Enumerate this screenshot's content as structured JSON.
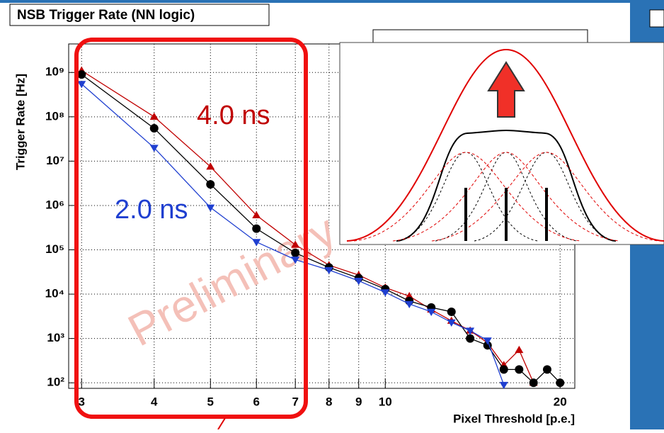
{
  "chart_data": {
    "type": "line",
    "title": "NSB Trigger Rate (NN logic)",
    "x_label": "Pixel Threshold [p.e.]",
    "y_label": "Trigger Rate [Hz]",
    "watermark": "Preliminary",
    "x": [
      3,
      4,
      5,
      6,
      7,
      8,
      9,
      10,
      11,
      12,
      13,
      14,
      15,
      16,
      17,
      18,
      19,
      20
    ],
    "series": [
      {
        "name": "4.0 ns",
        "color": "#c00000",
        "marker": "triangle",
        "values": [
          1100000000,
          100000000,
          7500000,
          600000,
          130000,
          45000,
          27000,
          14000,
          9000,
          4500,
          2500,
          1500,
          800,
          250,
          550,
          100,
          null,
          null
        ]
      },
      {
        "color": "#000000",
        "marker": "circle",
        "values": [
          900000000,
          55000000,
          3000000,
          300000,
          85000,
          40000,
          23000,
          13000,
          7000,
          5000,
          4000,
          1000,
          700,
          200,
          200,
          100,
          200,
          100
        ]
      },
      {
        "name": "2.0 ns",
        "color": "#1f3fd0",
        "marker": "triangle-down",
        "values": [
          550000000,
          20000000,
          900000,
          150000,
          60000,
          35000,
          20000,
          11000,
          6000,
          4000,
          2300,
          1500,
          900,
          90,
          null,
          null,
          null,
          null
        ]
      }
    ],
    "xlog": true,
    "ylog": true,
    "grid": true,
    "xlim": [
      2.85,
      21.2
    ],
    "ylim": [
      75,
      4400000000
    ],
    "xticks": [
      3,
      4,
      5,
      6,
      7,
      8,
      9,
      10,
      20
    ],
    "yticks": [
      {
        "value": 100,
        "label": "10²"
      },
      {
        "value": 1000,
        "label": "10³"
      },
      {
        "value": 10000,
        "label": "10⁴"
      },
      {
        "value": 100000,
        "label": "10⁵"
      },
      {
        "value": 1000000,
        "label": "10⁶"
      },
      {
        "value": 10000000,
        "label": "10⁷"
      },
      {
        "value": 100000000,
        "label": "10⁸"
      },
      {
        "value": 1000000000,
        "label": "10⁹"
      }
    ]
  }
}
